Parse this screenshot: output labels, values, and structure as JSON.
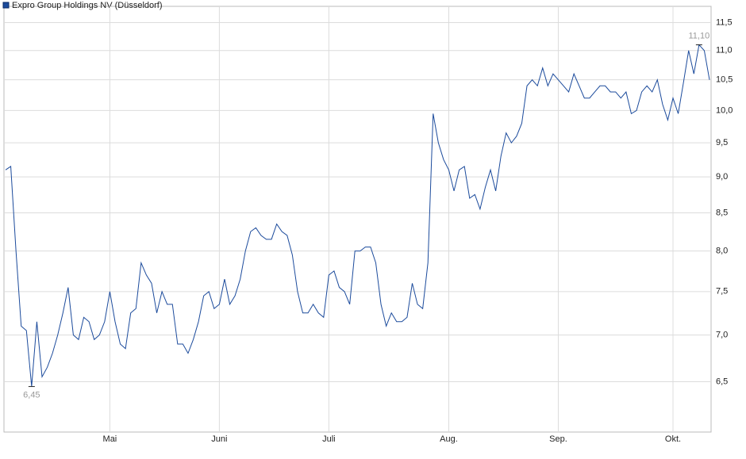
{
  "chart_data": {
    "type": "line",
    "log_scale": true,
    "grid": true,
    "legend": "top-left",
    "series": [
      {
        "name": "Expro Group Holdings NV (Düsseldorf)",
        "color": "#1c4b9c",
        "values": [
          9.1,
          9.15,
          8.0,
          7.1,
          7.05,
          6.45,
          7.15,
          6.55,
          6.65,
          6.8,
          7.0,
          7.25,
          7.55,
          7.0,
          6.95,
          7.2,
          7.15,
          6.95,
          7.0,
          7.15,
          7.5,
          7.15,
          6.9,
          6.85,
          7.25,
          7.3,
          7.85,
          7.7,
          7.6,
          7.25,
          7.5,
          7.35,
          7.35,
          6.9,
          6.9,
          6.8,
          6.95,
          7.15,
          7.45,
          7.5,
          7.3,
          7.35,
          7.65,
          7.35,
          7.45,
          7.65,
          8.0,
          8.25,
          8.3,
          8.2,
          8.15,
          8.15,
          8.35,
          8.25,
          8.2,
          7.95,
          7.5,
          7.25,
          7.25,
          7.35,
          7.25,
          7.2,
          7.7,
          7.75,
          7.55,
          7.5,
          7.35,
          8.0,
          8.0,
          8.05,
          8.05,
          7.85,
          7.35,
          7.1,
          7.25,
          7.15,
          7.15,
          7.2,
          7.6,
          7.35,
          7.3,
          7.85,
          9.95,
          9.5,
          9.25,
          9.1,
          8.8,
          9.1,
          9.15,
          8.7,
          8.75,
          8.55,
          8.85,
          9.1,
          8.8,
          9.3,
          9.65,
          9.5,
          9.6,
          9.8,
          10.4,
          10.5,
          10.4,
          10.7,
          10.4,
          10.6,
          10.5,
          10.4,
          10.3,
          10.6,
          10.4,
          10.2,
          10.2,
          10.3,
          10.4,
          10.4,
          10.3,
          10.3,
          10.2,
          10.3,
          9.95,
          10.0,
          10.3,
          10.4,
          10.3,
          10.5,
          10.1,
          9.85,
          10.2,
          9.95,
          10.45,
          11.0,
          10.6,
          11.1,
          11.0,
          10.5
        ]
      }
    ],
    "categories": [
      null,
      null,
      null,
      null,
      null,
      null,
      null,
      null,
      null,
      null,
      null,
      null,
      null,
      null,
      null,
      null,
      null,
      null,
      null,
      null,
      "Mai",
      null,
      null,
      null,
      null,
      null,
      null,
      null,
      null,
      null,
      null,
      null,
      null,
      null,
      null,
      null,
      null,
      null,
      null,
      null,
      null,
      "Juni",
      null,
      null,
      null,
      null,
      null,
      null,
      null,
      null,
      null,
      null,
      null,
      null,
      null,
      null,
      null,
      null,
      null,
      null,
      null,
      null,
      "Juli",
      null,
      null,
      null,
      null,
      null,
      null,
      null,
      null,
      null,
      null,
      null,
      null,
      null,
      null,
      null,
      null,
      null,
      null,
      null,
      null,
      null,
      null,
      "Aug.",
      null,
      null,
      null,
      null,
      null,
      null,
      null,
      null,
      null,
      null,
      null,
      null,
      null,
      null,
      null,
      null,
      null,
      null,
      null,
      null,
      "Sep.",
      null,
      null,
      null,
      null,
      null,
      null,
      null,
      null,
      null,
      null,
      null,
      null,
      null,
      null,
      null,
      null,
      null,
      null,
      null,
      null,
      null,
      "Okt.",
      null,
      null,
      null,
      null,
      null,
      null,
      null
    ],
    "ylim": [
      6.0,
      11.8
    ],
    "yticks": [
      {
        "value": 6.5,
        "label": "6,5"
      },
      {
        "value": 7.0,
        "label": "7,0"
      },
      {
        "value": 7.5,
        "label": "7,5"
      },
      {
        "value": 8.0,
        "label": "8,0"
      },
      {
        "value": 8.5,
        "label": "8,5"
      },
      {
        "value": 9.0,
        "label": "9,0"
      },
      {
        "value": 9.5,
        "label": "9,5"
      },
      {
        "value": 10.0,
        "label": "10,0"
      },
      {
        "value": 10.5,
        "label": "10,5"
      },
      {
        "value": 11.0,
        "label": "11,0"
      },
      {
        "value": 11.5,
        "label": "11,5"
      }
    ],
    "min_label": {
      "value": 6.45,
      "label": "6,45"
    },
    "max_label": {
      "value": 11.1,
      "label": "11,10"
    }
  }
}
